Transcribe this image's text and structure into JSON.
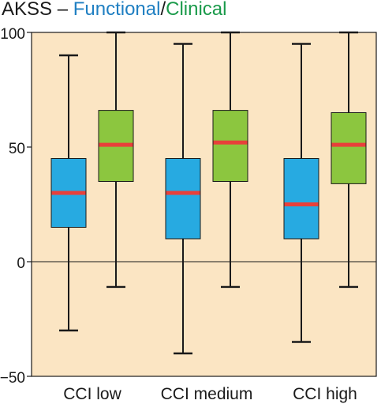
{
  "title": {
    "prefix": "AKSS – ",
    "functional": "Functional",
    "separator": "/",
    "clinical": "Clinical"
  },
  "colors": {
    "background": "#fbe5c3",
    "functional": "#27aae1",
    "clinical": "#8cc63f",
    "median": "#e8403a",
    "title_functional": "#1f7fc2",
    "title_clinical": "#1a9a4a",
    "axis": "#1a1a1a"
  },
  "chart_data": {
    "type": "box",
    "title": "AKSS – Functional/Clinical",
    "categories": [
      "CCI low",
      "CCI medium",
      "CCI high"
    ],
    "yticks": [
      "100",
      "50",
      "0",
      "−50"
    ],
    "ylim": [
      -50,
      100
    ],
    "reference_line": 0,
    "grid": false,
    "series": [
      {
        "name": "Functional",
        "color": "#27aae1",
        "boxes": [
          {
            "min": -30,
            "q1": 15,
            "median": 30,
            "q3": 45,
            "max": 90
          },
          {
            "min": -40,
            "q1": 10,
            "median": 30,
            "q3": 45,
            "max": 95
          },
          {
            "min": -35,
            "q1": 10,
            "median": 25,
            "q3": 45,
            "max": 95
          }
        ]
      },
      {
        "name": "Clinical",
        "color": "#8cc63f",
        "boxes": [
          {
            "min": -11,
            "q1": 35,
            "median": 51,
            "q3": 66,
            "max": 100
          },
          {
            "min": -11,
            "q1": 35,
            "median": 52,
            "q3": 66,
            "max": 100
          },
          {
            "min": -11,
            "q1": 34,
            "median": 51,
            "q3": 65,
            "max": 100
          }
        ]
      }
    ]
  }
}
